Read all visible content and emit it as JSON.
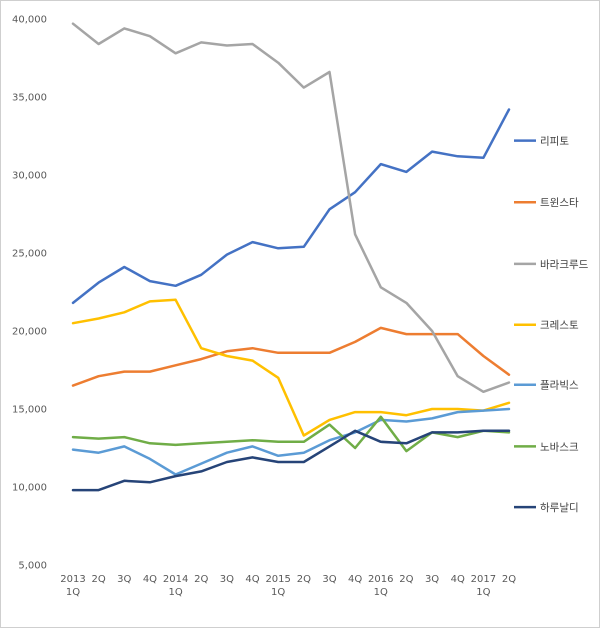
{
  "chart_data": {
    "type": "line",
    "x_tick_labels": [
      {
        "top": "2013",
        "bottom": "1Q"
      },
      {
        "top": "2Q",
        "bottom": ""
      },
      {
        "top": "3Q",
        "bottom": ""
      },
      {
        "top": "4Q",
        "bottom": ""
      },
      {
        "top": "2014",
        "bottom": "1Q"
      },
      {
        "top": "2Q",
        "bottom": ""
      },
      {
        "top": "3Q",
        "bottom": ""
      },
      {
        "top": "4Q",
        "bottom": ""
      },
      {
        "top": "2015",
        "bottom": "1Q"
      },
      {
        "top": "2Q",
        "bottom": ""
      },
      {
        "top": "3Q",
        "bottom": ""
      },
      {
        "top": "4Q",
        "bottom": ""
      },
      {
        "top": "2016",
        "bottom": "1Q"
      },
      {
        "top": "2Q",
        "bottom": ""
      },
      {
        "top": "3Q",
        "bottom": ""
      },
      {
        "top": "4Q",
        "bottom": ""
      },
      {
        "top": "2017",
        "bottom": "1Q"
      },
      {
        "top": "2Q",
        "bottom": ""
      }
    ],
    "ylim": [
      5000,
      40000
    ],
    "y_ticks": [
      5000,
      10000,
      15000,
      20000,
      25000,
      30000,
      35000,
      40000
    ],
    "y_tick_labels": [
      "5,000",
      "10,000",
      "15,000",
      "20,000",
      "25,000",
      "30,000",
      "35,000",
      "40,000"
    ],
    "grid": false,
    "legend_position": "right",
    "series": [
      {
        "name": "리피토",
        "color": "#4472C4",
        "values": [
          21800,
          23100,
          24100,
          23200,
          22900,
          23600,
          24900,
          25700,
          25300,
          25400,
          27800,
          28900,
          30700,
          30200,
          31500,
          31200,
          31100,
          34200
        ]
      },
      {
        "name": "트윈스타",
        "color": "#ED7D31",
        "values": [
          16500,
          17100,
          17400,
          17400,
          17800,
          18200,
          18700,
          18900,
          18600,
          18600,
          18600,
          19300,
          20200,
          19800,
          19800,
          19800,
          18400,
          17200
        ]
      },
      {
        "name": "바라크루드",
        "color": "#A5A5A5",
        "values": [
          39700,
          38400,
          39400,
          38900,
          37800,
          38500,
          38300,
          38400,
          37200,
          35600,
          36600,
          26200,
          22800,
          21800,
          20000,
          17100,
          16100,
          16700
        ]
      },
      {
        "name": "크레스토",
        "color": "#FFC000",
        "values": [
          20500,
          20800,
          21200,
          21900,
          22000,
          18900,
          18400,
          18100,
          17000,
          13300,
          14300,
          14800,
          14800,
          14600,
          15000,
          15000,
          14900,
          15400
        ]
      },
      {
        "name": "플라빅스",
        "color": "#5B9BD5",
        "values": [
          12400,
          12200,
          12600,
          11800,
          10800,
          11500,
          12200,
          12600,
          12000,
          12200,
          13000,
          13500,
          14300,
          14200,
          14400,
          14800,
          14900,
          15000
        ]
      },
      {
        "name": "노바스크",
        "color": "#70AD47",
        "values": [
          13200,
          13100,
          13200,
          12800,
          12700,
          12800,
          12900,
          13000,
          12900,
          12900,
          14000,
          12500,
          14500,
          12300,
          13500,
          13200,
          13600,
          13500
        ]
      },
      {
        "name": "하루날디",
        "color": "#264478",
        "values": [
          9800,
          9800,
          10400,
          10300,
          10700,
          11000,
          11600,
          11900,
          11600,
          11600,
          12600,
          13600,
          12900,
          12800,
          13500,
          13500,
          13600,
          13600
        ]
      }
    ]
  }
}
